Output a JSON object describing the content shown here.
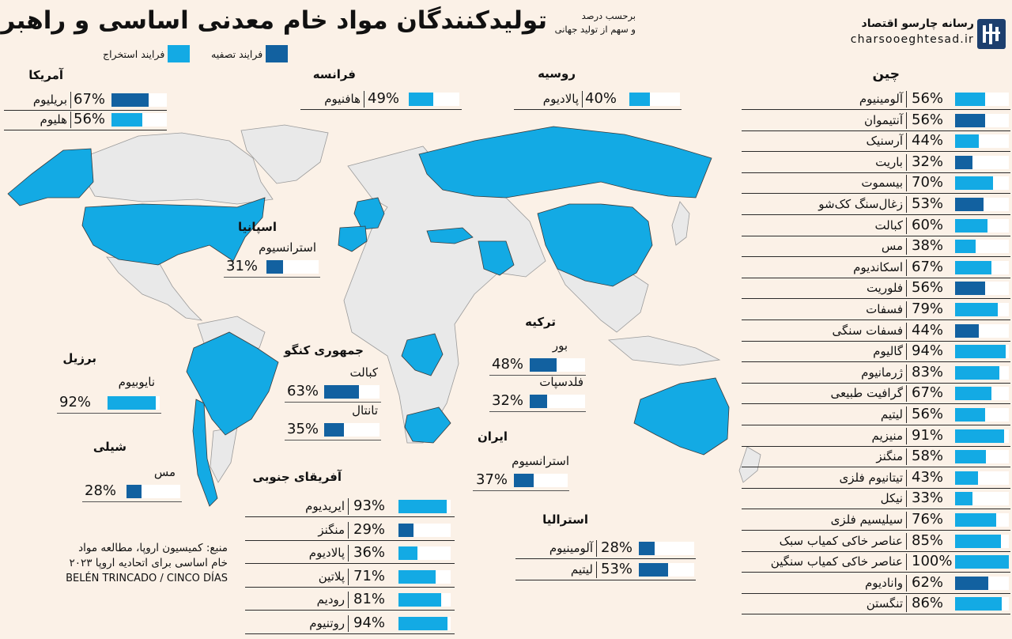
{
  "header": {
    "title": "تولیدکنندگان مواد خام معدنی اساسی و راهبردی",
    "subtitle_line1": "برحسب درصد",
    "subtitle_line2": "و سهم از تولید جهانی",
    "brand_name": "رسانه چارسو اقتصاد",
    "brand_url": "charsooeghtesad.ir"
  },
  "legend": {
    "refining_label": "فرایند تصفیه",
    "extraction_label": "فرایند استخراج"
  },
  "colors": {
    "extraction": "#13aae4",
    "refining": "#1261a0",
    "highlight_country": "#13aae4",
    "other_country": "#e9e9e9",
    "background": "#fbf1e7"
  },
  "source": {
    "line1": "منبع: کمیسیون اروپا، مطالعه مواد",
    "line2": "خام اساسی برای اتحادیه اروپا ۲۰۲۳",
    "line3": "BELÉN TRINCADO / CINCO DÍAS"
  },
  "chart_data": {
    "type": "bar",
    "unit": "%",
    "groups": [
      {
        "country": "چین",
        "items": [
          {
            "mineral": "آلومینیوم",
            "value": 56,
            "process": "extraction"
          },
          {
            "mineral": "آنتیموان",
            "value": 56,
            "process": "refining"
          },
          {
            "mineral": "آرسنیک",
            "value": 44,
            "process": "extraction"
          },
          {
            "mineral": "باریت",
            "value": 32,
            "process": "refining"
          },
          {
            "mineral": "بیسموت",
            "value": 70,
            "process": "extraction"
          },
          {
            "mineral": "زغال‌سنگ کک‌شو",
            "value": 53,
            "process": "refining"
          },
          {
            "mineral": "کبالت",
            "value": 60,
            "process": "extraction"
          },
          {
            "mineral": "مس",
            "value": 38,
            "process": "extraction"
          },
          {
            "mineral": "اسکاندیوم",
            "value": 67,
            "process": "extraction"
          },
          {
            "mineral": "فلوریت",
            "value": 56,
            "process": "refining"
          },
          {
            "mineral": "فسفات",
            "value": 79,
            "process": "extraction"
          },
          {
            "mineral": "فسفات سنگی",
            "value": 44,
            "process": "refining"
          },
          {
            "mineral": "گالیوم",
            "value": 94,
            "process": "extraction"
          },
          {
            "mineral": "ژرمانیوم",
            "value": 83,
            "process": "extraction"
          },
          {
            "mineral": "گرافیت طبیعی",
            "value": 67,
            "process": "extraction"
          },
          {
            "mineral": "لیتیم",
            "value": 56,
            "process": "extraction"
          },
          {
            "mineral": "منیزیم",
            "value": 91,
            "process": "extraction"
          },
          {
            "mineral": "منگنز",
            "value": 58,
            "process": "extraction"
          },
          {
            "mineral": "تیتانیوم فلزی",
            "value": 43,
            "process": "extraction"
          },
          {
            "mineral": "نیکل",
            "value": 33,
            "process": "extraction"
          },
          {
            "mineral": "سیلیسیم فلزی",
            "value": 76,
            "process": "extraction"
          },
          {
            "mineral": "عناصر خاکی کمیاب سبک",
            "value": 85,
            "process": "extraction"
          },
          {
            "mineral": "عناصر خاکی کمیاب سنگین",
            "value": 100,
            "process": "extraction"
          },
          {
            "mineral": "وانادیوم",
            "value": 62,
            "process": "refining"
          },
          {
            "mineral": "تنگستن",
            "value": 86,
            "process": "extraction"
          }
        ]
      },
      {
        "country": "آمریکا",
        "items": [
          {
            "mineral": "بریلیوم",
            "value": 67,
            "process": "refining"
          },
          {
            "mineral": "هلیوم",
            "value": 56,
            "process": "extraction"
          }
        ]
      },
      {
        "country": "فرانسه",
        "items": [
          {
            "mineral": "هافنیوم",
            "value": 49,
            "process": "extraction"
          }
        ]
      },
      {
        "country": "روسیه",
        "items": [
          {
            "mineral": "پالادیوم",
            "value": 40,
            "process": "extraction"
          }
        ]
      },
      {
        "country": "اسپانیا",
        "items": [
          {
            "mineral": "استرانسیوم",
            "value": 31,
            "process": "refining"
          }
        ]
      },
      {
        "country": "ترکیه",
        "items": [
          {
            "mineral": "بور",
            "value": 48,
            "process": "refining"
          },
          {
            "mineral": "فلدسپات",
            "value": 32,
            "process": "refining"
          }
        ]
      },
      {
        "country": "جمهوری کنگو",
        "items": [
          {
            "mineral": "کبالت",
            "value": 63,
            "process": "refining"
          },
          {
            "mineral": "تانتال",
            "value": 35,
            "process": "refining"
          }
        ]
      },
      {
        "country": "برزیل",
        "items": [
          {
            "mineral": "نایوبیوم",
            "value": 92,
            "process": "extraction"
          }
        ]
      },
      {
        "country": "شیلی",
        "items": [
          {
            "mineral": "مس",
            "value": 28,
            "process": "refining"
          }
        ]
      },
      {
        "country": "ایران",
        "items": [
          {
            "mineral": "استرانسیوم",
            "value": 37,
            "process": "refining"
          }
        ]
      },
      {
        "country": "آفریقای جنوبی",
        "items": [
          {
            "mineral": "ایریدیوم",
            "value": 93,
            "process": "extraction"
          },
          {
            "mineral": "منگنز",
            "value": 29,
            "process": "refining"
          },
          {
            "mineral": "پالادیوم",
            "value": 36,
            "process": "extraction"
          },
          {
            "mineral": "پلاتین",
            "value": 71,
            "process": "extraction"
          },
          {
            "mineral": "رودیم",
            "value": 81,
            "process": "extraction"
          },
          {
            "mineral": "روتنیوم",
            "value": 94,
            "process": "extraction"
          }
        ]
      },
      {
        "country": "استرالیا",
        "items": [
          {
            "mineral": "آلومینیوم",
            "value": 28,
            "process": "refining"
          },
          {
            "mineral": "لیتیم",
            "value": 53,
            "process": "refining"
          }
        ]
      }
    ]
  }
}
